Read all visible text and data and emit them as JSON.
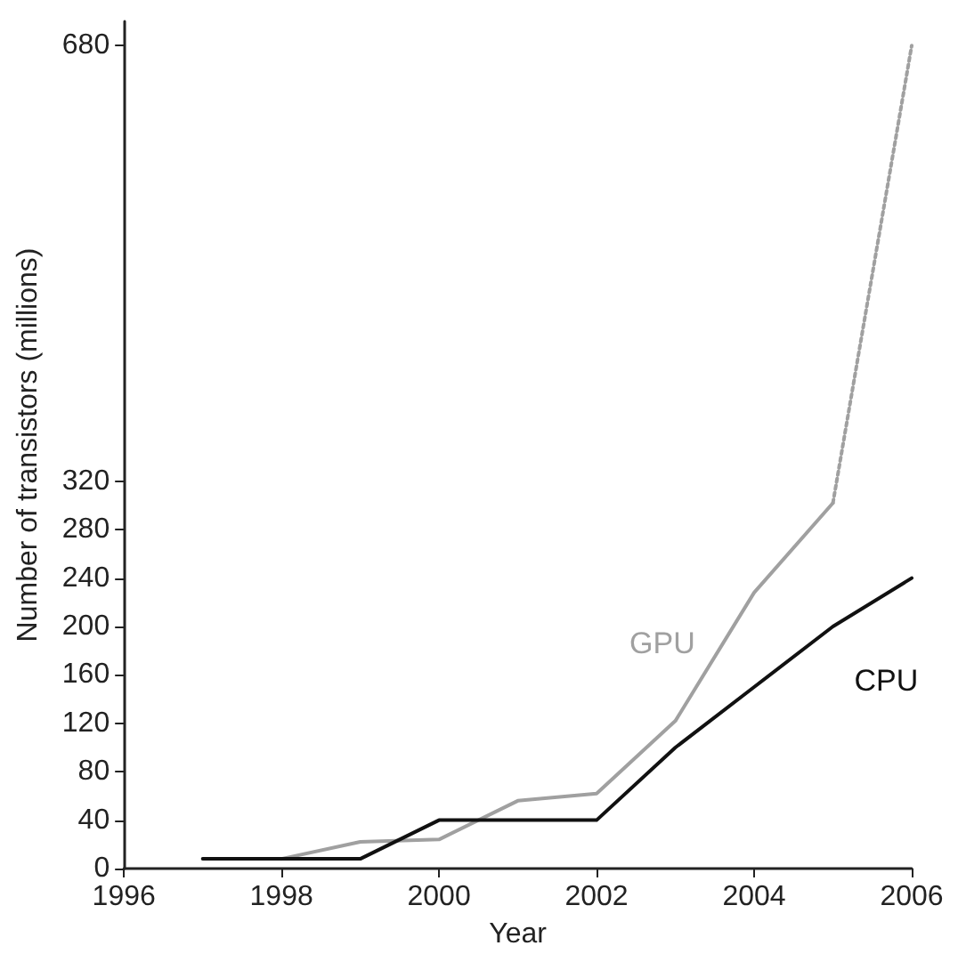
{
  "chart_data": {
    "type": "line",
    "xlabel": "Year",
    "ylabel": "Number of transistors (millions)",
    "xlim": [
      1996,
      2006
    ],
    "xticks": [
      1996,
      1998,
      2000,
      2002,
      2004,
      2006
    ],
    "ylim": [
      0,
      700
    ],
    "yticks": [
      0,
      40,
      80,
      120,
      160,
      200,
      240,
      280,
      320,
      680
    ],
    "grid": false,
    "marker": "none",
    "series": [
      {
        "name": "GPU",
        "color": "#a0a0a0",
        "x": [
          1998,
          1999,
          2000,
          2001,
          2002,
          2003,
          2004,
          2005
        ],
        "values": [
          8,
          22,
          24,
          56,
          62,
          122,
          228,
          302
        ],
        "line_style": "solid"
      },
      {
        "color": "#a0a0a0",
        "x": [
          2005,
          2006
        ],
        "values": [
          302,
          680
        ],
        "line_style": "dotted"
      },
      {
        "name": "CPU",
        "color": "#111111",
        "x": [
          1997,
          1998,
          1999,
          2000,
          2001,
          2002,
          2003,
          2004,
          2005,
          2006
        ],
        "values": [
          8,
          8,
          8,
          40,
          40,
          40,
          100,
          150,
          200,
          240
        ],
        "line_style": "solid"
      }
    ]
  }
}
